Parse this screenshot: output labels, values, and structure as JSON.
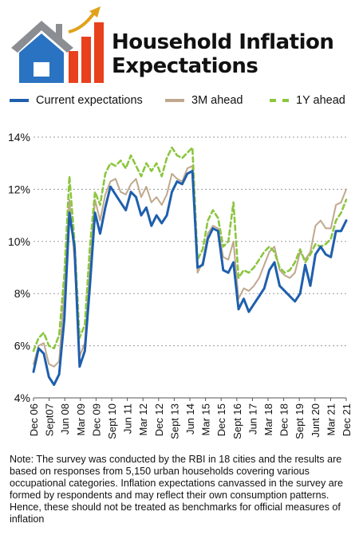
{
  "header": {
    "title_line1": "Household Inflation",
    "title_line2": "Expectations"
  },
  "icons": {
    "logo": "house-with-rising-bar-chart-icon"
  },
  "colors": {
    "current": "#1f5fad",
    "three_month": "#bfa88d",
    "one_year": "#8cc63f",
    "logo_roof": "#8a8d91",
    "logo_house": "#2a73c2",
    "logo_bars": "#e8401c",
    "logo_arrow": "#e0a21a"
  },
  "chart_data": {
    "type": "line",
    "ylim": [
      4,
      14
    ],
    "yticks": [
      "4%",
      "6%",
      "8%",
      "10%",
      "12%",
      "14%"
    ],
    "grid": "horizontal dotted",
    "x_tick_labels": [
      "Dec 06",
      "Sept07",
      "Jun 08",
      "Mar 09",
      "Dec 09",
      "Sept 10",
      "Jun 11",
      "Mar 12",
      "Dec 12",
      "Sept 13",
      "Jun 14",
      "Mar 15",
      "Dec 15",
      "Sept 16",
      "Jun 17",
      "Mar 18",
      "Dec 18",
      "Sept 19",
      "Junt 20",
      "Mar 21",
      "Dec 21"
    ],
    "legend_position": "top",
    "series": [
      {
        "name": "Current expectations",
        "style": "solid",
        "values": [
          5.0,
          5.9,
          5.7,
          4.8,
          4.5,
          4.9,
          7.0,
          11.1,
          9.8,
          5.2,
          5.8,
          8.3,
          11.1,
          10.3,
          11.3,
          12.1,
          11.8,
          11.5,
          11.2,
          11.9,
          11.7,
          11.0,
          11.3,
          10.6,
          11.0,
          10.7,
          11.0,
          11.9,
          12.3,
          12.2,
          12.6,
          12.7,
          9.0,
          9.1,
          10.1,
          10.5,
          10.4,
          8.9,
          8.8,
          9.2,
          7.4,
          7.8,
          7.3,
          7.6,
          7.9,
          8.2,
          8.9,
          9.2,
          8.3,
          8.1,
          7.9,
          7.7,
          8.0,
          9.1,
          8.3,
          9.5,
          9.8,
          9.5,
          9.4,
          10.4,
          10.4,
          10.8
        ]
      },
      {
        "name": "3M ahead",
        "style": "solid",
        "values": [
          5.3,
          6.0,
          6.1,
          5.3,
          5.2,
          5.4,
          8.1,
          11.6,
          9.3,
          5.6,
          6.1,
          9.0,
          11.6,
          10.8,
          11.8,
          12.3,
          12.4,
          11.9,
          11.8,
          12.2,
          12.4,
          11.7,
          12.1,
          11.5,
          11.7,
          11.4,
          11.8,
          12.6,
          12.4,
          12.3,
          12.8,
          12.9,
          8.8,
          9.2,
          10.3,
          10.6,
          10.5,
          9.4,
          9.3,
          10.0,
          7.8,
          8.2,
          8.1,
          8.3,
          8.6,
          9.1,
          9.6,
          9.8,
          8.9,
          8.7,
          8.6,
          8.8,
          9.6,
          9.3,
          9.6,
          10.6,
          10.8,
          10.5,
          10.5,
          11.4,
          11.5,
          12.0
        ]
      },
      {
        "name": "1Y ahead",
        "style": "dashed",
        "values": [
          5.8,
          6.3,
          6.5,
          6.0,
          5.9,
          6.4,
          8.7,
          12.5,
          10.0,
          6.3,
          6.8,
          9.8,
          11.9,
          11.4,
          12.6,
          13.0,
          12.9,
          13.1,
          12.8,
          13.3,
          12.9,
          12.5,
          13.0,
          12.7,
          13.0,
          12.5,
          13.2,
          13.6,
          13.3,
          13.2,
          13.4,
          13.6,
          9.3,
          9.7,
          10.8,
          11.2,
          10.9,
          9.8,
          10.0,
          11.5,
          8.6,
          8.9,
          8.8,
          9.0,
          9.3,
          9.6,
          9.8,
          9.6,
          9.0,
          8.8,
          8.9,
          9.2,
          9.7,
          9.2,
          9.5,
          9.9,
          9.8,
          9.9,
          10.1,
          10.8,
          11.1,
          11.6
        ]
      }
    ]
  },
  "note": "Note: The survey was conducted by the RBI in 18 cities and the results are based on responses from 5,150 urban households covering various occupational categories. Inflation expectations canvassed in the survey are formed by respondents and may reflect their own consumption patterns. Hence, these should not be treated as benchmarks for official measures of inflation"
}
